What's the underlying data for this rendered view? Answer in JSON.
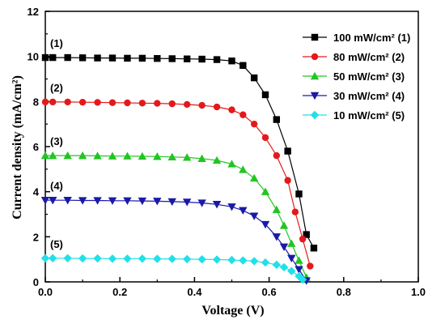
{
  "chart_data": {
    "type": "line",
    "xlabel": "Voltage (V)",
    "ylabel": "Current density (mA/cm²)",
    "xlim": [
      0.0,
      1.0
    ],
    "ylim": [
      0,
      12
    ],
    "x_ticks": [
      "0.0",
      "0.2",
      "0.4",
      "0.6",
      "0.8",
      "1.0"
    ],
    "y_ticks": [
      "0",
      "2",
      "4",
      "6",
      "8",
      "10",
      "12"
    ],
    "legend_position": "top-right",
    "grid": false,
    "series": [
      {
        "name": "100 mW/cm² (1)",
        "label": "(1)",
        "color": "#000000",
        "marker": "square",
        "x": [
          0.0,
          0.02,
          0.06,
          0.1,
          0.14,
          0.18,
          0.22,
          0.26,
          0.3,
          0.34,
          0.38,
          0.42,
          0.46,
          0.5,
          0.53,
          0.56,
          0.59,
          0.62,
          0.65,
          0.68,
          0.7,
          0.72
        ],
        "y": [
          9.95,
          9.95,
          9.95,
          9.94,
          9.93,
          9.93,
          9.92,
          9.92,
          9.91,
          9.9,
          9.89,
          9.88,
          9.86,
          9.8,
          9.6,
          9.05,
          8.3,
          7.2,
          5.8,
          3.9,
          2.1,
          1.5
        ]
      },
      {
        "name": "80 mW/cm² (2)",
        "label": "(2)",
        "color": "#e31a1c",
        "marker": "circle",
        "x": [
          0.0,
          0.02,
          0.06,
          0.1,
          0.14,
          0.18,
          0.22,
          0.26,
          0.3,
          0.34,
          0.38,
          0.42,
          0.46,
          0.5,
          0.53,
          0.56,
          0.59,
          0.62,
          0.65,
          0.67,
          0.69,
          0.71
        ],
        "y": [
          7.98,
          7.98,
          7.98,
          7.97,
          7.96,
          7.95,
          7.94,
          7.93,
          7.92,
          7.9,
          7.87,
          7.83,
          7.76,
          7.63,
          7.41,
          7.0,
          6.4,
          5.6,
          4.5,
          3.1,
          1.9,
          0.7
        ]
      },
      {
        "name": "50 mW/cm² (3)",
        "label": "(3)",
        "color": "#22c522",
        "marker": "triangle-up",
        "x": [
          0.0,
          0.02,
          0.06,
          0.1,
          0.14,
          0.18,
          0.22,
          0.26,
          0.3,
          0.34,
          0.38,
          0.42,
          0.46,
          0.5,
          0.53,
          0.56,
          0.59,
          0.62,
          0.64,
          0.66,
          0.68,
          0.7
        ],
        "y": [
          5.6,
          5.6,
          5.6,
          5.6,
          5.59,
          5.58,
          5.58,
          5.57,
          5.56,
          5.54,
          5.52,
          5.47,
          5.39,
          5.23,
          4.98,
          4.6,
          4.0,
          3.2,
          2.5,
          1.7,
          0.95,
          0.2
        ]
      },
      {
        "name": "30 mW/cm² (4)",
        "label": "(4)",
        "color": "#1a1aa8",
        "marker": "triangle-down",
        "x": [
          0.0,
          0.02,
          0.06,
          0.1,
          0.14,
          0.18,
          0.22,
          0.26,
          0.3,
          0.34,
          0.38,
          0.42,
          0.46,
          0.5,
          0.53,
          0.56,
          0.59,
          0.62,
          0.64,
          0.66,
          0.68,
          0.7
        ],
        "y": [
          3.62,
          3.62,
          3.62,
          3.61,
          3.61,
          3.6,
          3.6,
          3.59,
          3.58,
          3.56,
          3.54,
          3.5,
          3.44,
          3.33,
          3.17,
          2.92,
          2.55,
          2.0,
          1.55,
          1.05,
          0.55,
          0.05
        ]
      },
      {
        "name": "10 mW/cm² (5)",
        "label": "(5)",
        "color": "#20e0e8",
        "marker": "diamond",
        "x": [
          0.0,
          0.02,
          0.06,
          0.1,
          0.14,
          0.18,
          0.22,
          0.26,
          0.3,
          0.34,
          0.38,
          0.42,
          0.46,
          0.5,
          0.53,
          0.56,
          0.59,
          0.62,
          0.64,
          0.66,
          0.68,
          0.69
        ],
        "y": [
          1.05,
          1.05,
          1.05,
          1.04,
          1.04,
          1.03,
          1.03,
          1.03,
          1.02,
          1.02,
          1.01,
          1.0,
          0.99,
          0.97,
          0.95,
          0.92,
          0.86,
          0.76,
          0.65,
          0.48,
          0.25,
          0.1
        ]
      }
    ]
  }
}
